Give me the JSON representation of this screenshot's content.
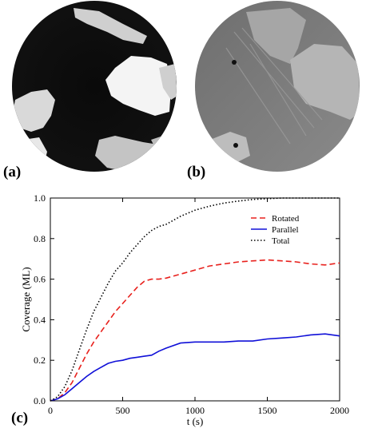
{
  "panels": [
    {
      "label": "(a)",
      "description_icon": "micrograph-circle-dark"
    },
    {
      "label": "(b)",
      "description_icon": "micrograph-circle-gray"
    },
    {
      "label": "(c)"
    }
  ],
  "chart_data": {
    "type": "line",
    "xlabel": "t (s)",
    "ylabel": "Coverage (ML)",
    "xlim": [
      0,
      2000
    ],
    "ylim": [
      0,
      1.0
    ],
    "xticks": [
      0,
      500,
      1000,
      1500,
      2000
    ],
    "xtick_labels": [
      "0",
      "500",
      "1000",
      "1500",
      "2000"
    ],
    "yticks": [
      0,
      0.2,
      0.4,
      0.6,
      0.8,
      1.0
    ],
    "ytick_labels": [
      "0.0",
      "0.2",
      "0.4",
      "0.6",
      "0.8",
      "1.0"
    ],
    "grid": false,
    "legend_position": "top-right",
    "series": [
      {
        "name": "Rotated",
        "color": "#e8211d",
        "style": "dashed",
        "x": [
          0,
          50,
          100,
          150,
          200,
          250,
          300,
          350,
          400,
          450,
          500,
          550,
          600,
          650,
          700,
          750,
          800,
          900,
          1000,
          1100,
          1200,
          1300,
          1400,
          1500,
          1600,
          1700,
          1800,
          1900,
          2000
        ],
        "y": [
          0,
          0.01,
          0.04,
          0.09,
          0.16,
          0.23,
          0.29,
          0.34,
          0.39,
          0.44,
          0.48,
          0.52,
          0.56,
          0.59,
          0.6,
          0.6,
          0.605,
          0.625,
          0.645,
          0.665,
          0.675,
          0.685,
          0.69,
          0.695,
          0.69,
          0.685,
          0.675,
          0.67,
          0.68
        ]
      },
      {
        "name": "Parallel",
        "color": "#1010d8",
        "style": "solid",
        "x": [
          0,
          50,
          100,
          150,
          200,
          250,
          300,
          350,
          400,
          450,
          500,
          550,
          600,
          650,
          700,
          750,
          800,
          900,
          1000,
          1100,
          1200,
          1300,
          1400,
          1500,
          1600,
          1700,
          1800,
          1900,
          2000
        ],
        "y": [
          0,
          0.01,
          0.03,
          0.06,
          0.09,
          0.12,
          0.145,
          0.165,
          0.185,
          0.195,
          0.2,
          0.21,
          0.215,
          0.22,
          0.225,
          0.245,
          0.26,
          0.285,
          0.29,
          0.29,
          0.29,
          0.295,
          0.295,
          0.305,
          0.31,
          0.315,
          0.325,
          0.33,
          0.32
        ]
      },
      {
        "name": "Total",
        "color": "#000000",
        "style": "dotted",
        "x": [
          0,
          50,
          100,
          150,
          200,
          250,
          300,
          350,
          400,
          450,
          500,
          550,
          600,
          650,
          700,
          750,
          800,
          900,
          1000,
          1100,
          1200,
          1300,
          1400,
          1500,
          1600,
          1700,
          1800,
          1900,
          2000
        ],
        "y": [
          0,
          0.02,
          0.07,
          0.15,
          0.25,
          0.35,
          0.44,
          0.51,
          0.58,
          0.64,
          0.68,
          0.73,
          0.77,
          0.81,
          0.84,
          0.86,
          0.87,
          0.91,
          0.94,
          0.96,
          0.975,
          0.985,
          0.993,
          0.997,
          1.0,
          1.0,
          1.0,
          1.0,
          1.0
        ]
      }
    ]
  }
}
